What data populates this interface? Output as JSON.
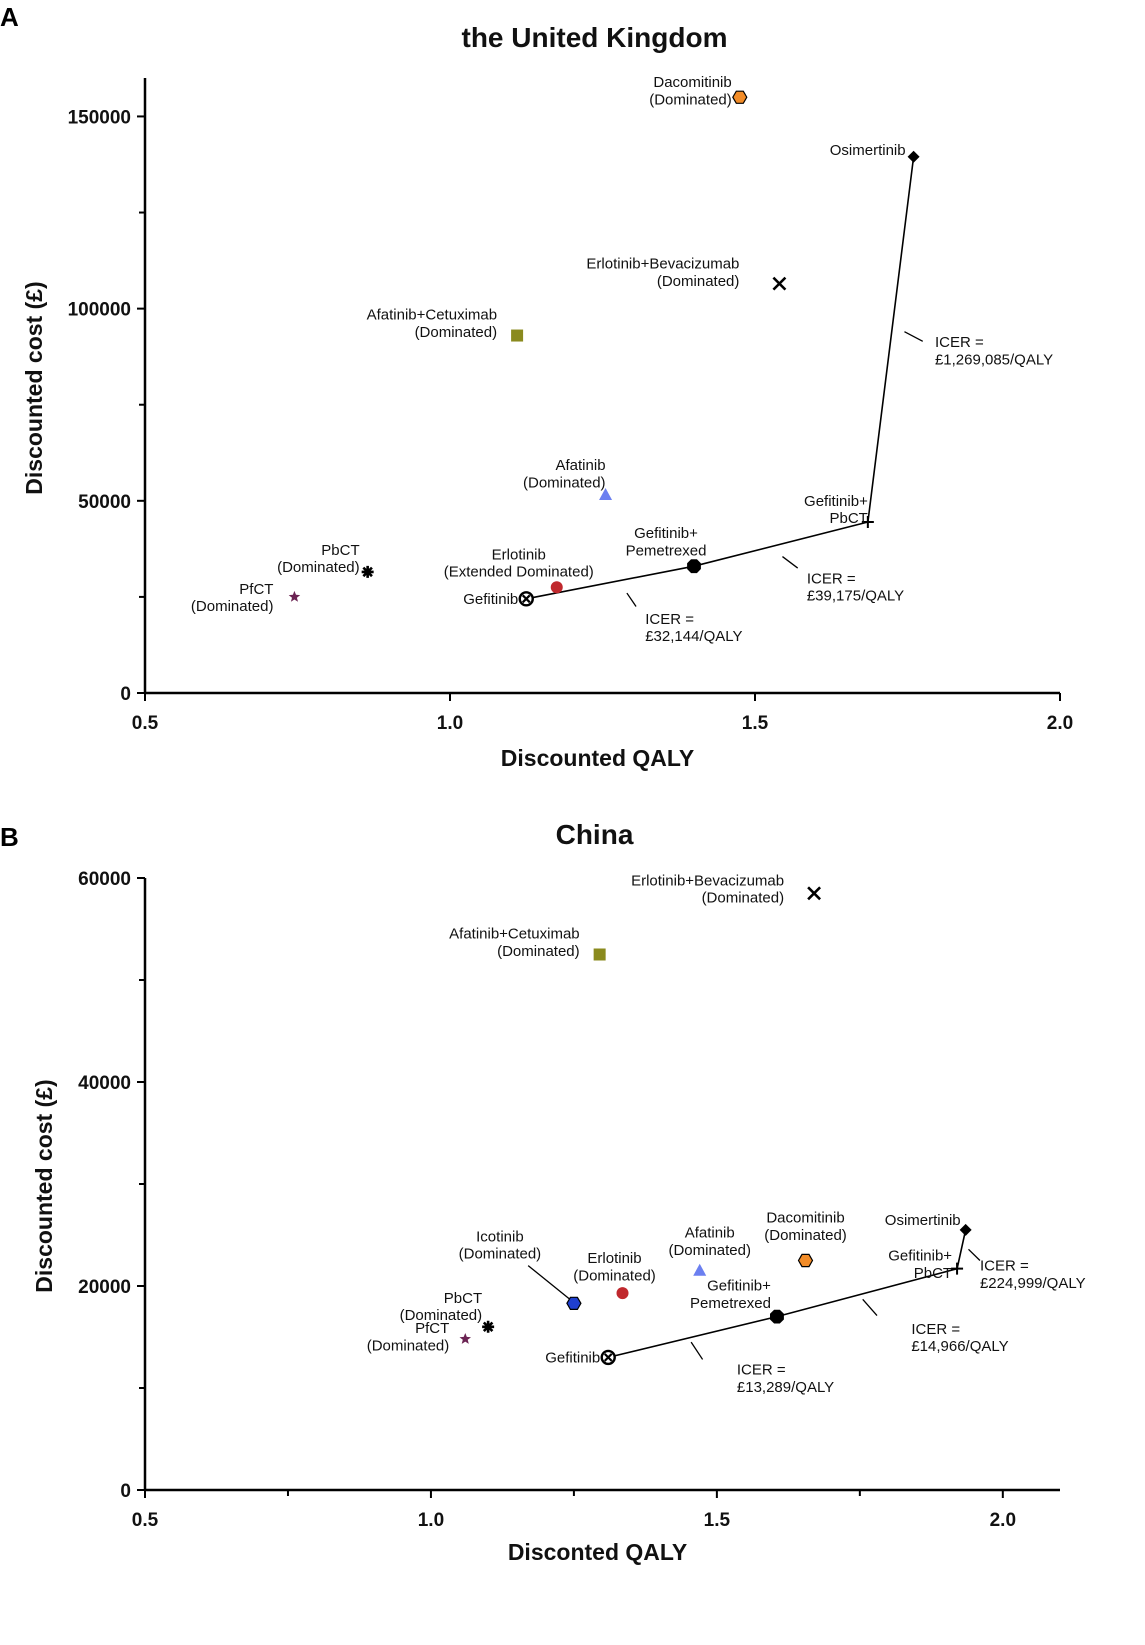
{
  "chart_data": [
    {
      "type": "scatter",
      "panel_letter": "A",
      "title": "the United Kingdom",
      "xlabel": "Discounted QALY",
      "ylabel": "Discounted cost (£)",
      "xlim": [
        0.5,
        2.0
      ],
      "ylim": [
        0,
        160000
      ],
      "xticks": [
        0.5,
        1.0,
        1.5,
        2.0
      ],
      "xtick_labels": [
        "0.5",
        "1.0",
        "1.5",
        "2.0"
      ],
      "yticks": [
        0,
        50000,
        100000,
        150000
      ],
      "ytick_labels": [
        "0",
        "50000",
        "100000",
        "150000"
      ],
      "yminor": [
        25000,
        75000,
        125000
      ],
      "points": [
        {
          "id": "dacomitinib",
          "label": "Dacomitinib\n(Dominated)",
          "x": 1.475,
          "y": 155000,
          "marker": "hexagon",
          "color": "#f28c28",
          "label_anchor": "end",
          "label_dx": -8,
          "label_dy": -10
        },
        {
          "id": "osimertinib",
          "label": "Osimertinib",
          "x": 1.76,
          "y": 139500,
          "marker": "diamond",
          "color": "#000000",
          "label_anchor": "end",
          "label_dx": -8,
          "label_dy": -2
        },
        {
          "id": "erlotinib-bevacizumab",
          "label": "Erlotinib+Bevacizumab\n(Dominated)",
          "x": 1.54,
          "y": 106500,
          "marker": "x",
          "color": "#000000",
          "label_anchor": "end",
          "label_dx": -40,
          "label_dy": -15
        },
        {
          "id": "afatinib-cetuximab",
          "label": "Afatinib+Cetuximab\n(Dominated)",
          "x": 1.11,
          "y": 93000,
          "marker": "square",
          "color": "#8a8a1e",
          "label_anchor": "end",
          "label_dx": -20,
          "label_dy": -16
        },
        {
          "id": "afatinib",
          "label": "Afatinib\n(Dominated)",
          "x": 1.255,
          "y": 51500,
          "marker": "triangle",
          "color": "#6b7ff0",
          "label_anchor": "end",
          "label_dx": 0,
          "label_dy": -25
        },
        {
          "id": "gefitinib-pbct",
          "label": "Gefitinib+\nPbCT",
          "x": 1.685,
          "y": 44500,
          "marker": "plus",
          "color": "#000000",
          "label_anchor": "end",
          "label_dx": 0,
          "label_dy": -16
        },
        {
          "id": "gefitinib-pemetrexed",
          "label": "Gefitinib+\nPemetrexed",
          "x": 1.4,
          "y": 33000,
          "marker": "octagon",
          "color": "#000000",
          "label_anchor": "middle",
          "label_dx": -28,
          "label_dy": -28
        },
        {
          "id": "pbct",
          "label": "PbCT\n(Dominated)",
          "x": 0.865,
          "y": 31500,
          "marker": "asterisk",
          "color": "#000000",
          "label_anchor": "end",
          "label_dx": -8,
          "label_dy": -17
        },
        {
          "id": "erlotinib",
          "label": "Erlotinib\n(Extended Dominated)",
          "x": 1.175,
          "y": 27500,
          "marker": "circle",
          "color": "#c0282d",
          "label_anchor": "middle",
          "label_dx": -38,
          "label_dy": -28
        },
        {
          "id": "pfct",
          "label": "PfCT\n(Dominated)",
          "x": 0.745,
          "y": 25000,
          "marker": "star",
          "color": "#6b2353",
          "label_anchor": "end",
          "label_dx": -21,
          "label_dy": -3
        },
        {
          "id": "gefitinib",
          "label": "Gefitinib",
          "x": 1.125,
          "y": 24500,
          "marker": "circled-x",
          "color": "#000000",
          "label_anchor": "end",
          "label_dx": -8,
          "label_dy": 5
        }
      ],
      "frontier": [
        "gefitinib",
        "gefitinib-pemetrexed",
        "gefitinib-pbct",
        "osimertinib"
      ],
      "icer_labels": [
        {
          "text": "ICER =\n£32,144/QALY",
          "x": 1.32,
          "y": 18000,
          "leader": [
            [
              1.29,
              26000
            ],
            [
              1.305,
              22500
            ]
          ]
        },
        {
          "text": "ICER =\n£39,175/QALY",
          "x": 1.585,
          "y": 28500,
          "leader": [
            [
              1.545,
              35500
            ],
            [
              1.57,
              32500
            ]
          ]
        },
        {
          "text": "ICER =\n£1,269,085/QALY",
          "x": 1.795,
          "y": 90000,
          "leader": [
            [
              1.745,
              94000
            ],
            [
              1.775,
              91500
            ]
          ]
        }
      ]
    },
    {
      "type": "scatter",
      "panel_letter": "B",
      "title": "China",
      "xlabel": "Disconted QALY",
      "ylabel": "Discounted cost (£)",
      "xlim": [
        0.5,
        2.1
      ],
      "ylim": [
        0,
        60000
      ],
      "xticks": [
        0.5,
        1.0,
        1.5,
        2.0
      ],
      "xtick_labels": [
        "0.5",
        "1.0",
        "1.5",
        "2.0"
      ],
      "xminor": [
        0.75,
        1.25,
        1.75
      ],
      "yticks": [
        0,
        20000,
        40000,
        60000
      ],
      "ytick_labels": [
        "0",
        "20000",
        "40000",
        "60000"
      ],
      "yminor": [
        10000,
        30000,
        50000
      ],
      "points": [
        {
          "id": "erlotinib-bevacizumab",
          "label": "Erlotinib+Bevacizumab\n(Dominated)",
          "x": 1.67,
          "y": 58500,
          "marker": "x",
          "color": "#000000",
          "label_anchor": "end",
          "label_dx": -30,
          "label_dy": -8
        },
        {
          "id": "afatinib-cetuximab",
          "label": "Afatinib+Cetuximab\n(Dominated)",
          "x": 1.295,
          "y": 52500,
          "marker": "square",
          "color": "#8a8a1e",
          "label_anchor": "end",
          "label_dx": -20,
          "label_dy": -16
        },
        {
          "id": "osimertinib",
          "label": "Osimertinib",
          "x": 1.935,
          "y": 25500,
          "marker": "diamond",
          "color": "#000000",
          "label_anchor": "end",
          "label_dx": -5,
          "label_dy": -5
        },
        {
          "id": "dacomitinib",
          "label": "Dacomitinib\n(Dominated)",
          "x": 1.655,
          "y": 22500,
          "marker": "hexagon",
          "color": "#f28c28",
          "label_anchor": "middle",
          "label_dx": 0,
          "label_dy": -38
        },
        {
          "id": "gefitinib-pbct",
          "label": "Gefitinib+\nPbCT",
          "x": 1.92,
          "y": 21700,
          "marker": "plus",
          "color": "#000000",
          "label_anchor": "end",
          "label_dx": -5,
          "label_dy": -8
        },
        {
          "id": "afatinib",
          "label": "Afatinib\n(Dominated)",
          "x": 1.47,
          "y": 21500,
          "marker": "triangle",
          "color": "#6b7ff0",
          "label_anchor": "middle",
          "label_dx": 10,
          "label_dy": -33
        },
        {
          "id": "erlotinib",
          "label": "Erlotinib\n(Dominated)",
          "x": 1.335,
          "y": 19300,
          "marker": "circle",
          "color": "#c0282d",
          "label_anchor": "middle",
          "label_dx": -8,
          "label_dy": -30
        },
        {
          "id": "icotinib",
          "label": "Icotinib\n(Dominated)",
          "x": 1.25,
          "y": 18300,
          "marker": "hexagon",
          "color": "#1f3fcf",
          "label_anchor": "middle",
          "label_dx": -74,
          "label_dy": -62
        },
        {
          "id": "gefitinib-pemetrexed",
          "label": "Gefitinib+\nPemetrexed",
          "x": 1.605,
          "y": 17000,
          "marker": "octagon",
          "color": "#000000",
          "label_anchor": "end",
          "label_dx": -6,
          "label_dy": -26
        },
        {
          "id": "pbct",
          "label": "PbCT\n(Dominated)",
          "x": 1.1,
          "y": 16000,
          "marker": "asterisk",
          "color": "#000000",
          "label_anchor": "end",
          "label_dx": -6,
          "label_dy": -24
        },
        {
          "id": "pfct",
          "label": "PfCT\n(Dominated)",
          "x": 1.06,
          "y": 14800,
          "marker": "star",
          "color": "#6b2353",
          "label_anchor": "end",
          "label_dx": -16,
          "label_dy": -6
        },
        {
          "id": "gefitinib",
          "label": "Gefitinib",
          "x": 1.31,
          "y": 13000,
          "marker": "circled-x",
          "color": "#000000",
          "label_anchor": "end",
          "label_dx": -8,
          "label_dy": 5
        }
      ],
      "frontier": [
        "gefitinib",
        "gefitinib-pemetrexed",
        "gefitinib-pbct",
        "osimertinib"
      ],
      "icer_labels": [
        {
          "text": "ICER =\n£13,289/QALY",
          "x": 1.535,
          "y": 11300,
          "leader": [
            [
              1.455,
              14500
            ],
            [
              1.475,
              12800
            ]
          ]
        },
        {
          "text": "ICER =\n£14,966/QALY",
          "x": 1.84,
          "y": 15300,
          "leader": [
            [
              1.755,
              18700
            ],
            [
              1.78,
              17100
            ]
          ]
        },
        {
          "text": "ICER =\n£224,999/QALY",
          "x": 1.96,
          "y": 21500,
          "leader": [
            [
              1.94,
              23600
            ],
            [
              1.96,
              22500
            ]
          ]
        }
      ],
      "extra_leaders": [
        {
          "from": [
            1.17,
            22000
          ],
          "to": [
            1.245,
            18600
          ]
        }
      ]
    }
  ]
}
